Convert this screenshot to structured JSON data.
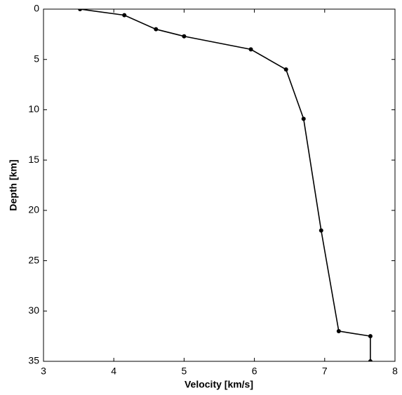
{
  "chart_data": {
    "type": "line",
    "x_label": "Velocity [km/s]",
    "y_label": "Depth [km]",
    "x": [
      3.52,
      4.15,
      4.6,
      5.0,
      5.95,
      6.45,
      6.7,
      6.95,
      7.2,
      7.65,
      7.65
    ],
    "series": [
      {
        "color": "#000000",
        "values": [
          0,
          0.6,
          2.0,
          2.7,
          4.0,
          6.0,
          10.9,
          22.0,
          32.0,
          32.5,
          35
        ]
      }
    ],
    "xlim": [
      3,
      8
    ],
    "ylim": [
      0,
      35
    ],
    "y_inverted": true,
    "xticks": [
      3,
      4,
      5,
      6,
      7,
      8
    ],
    "yticks": [
      0,
      5,
      10,
      15,
      20,
      25,
      30,
      35
    ],
    "grid": false
  }
}
